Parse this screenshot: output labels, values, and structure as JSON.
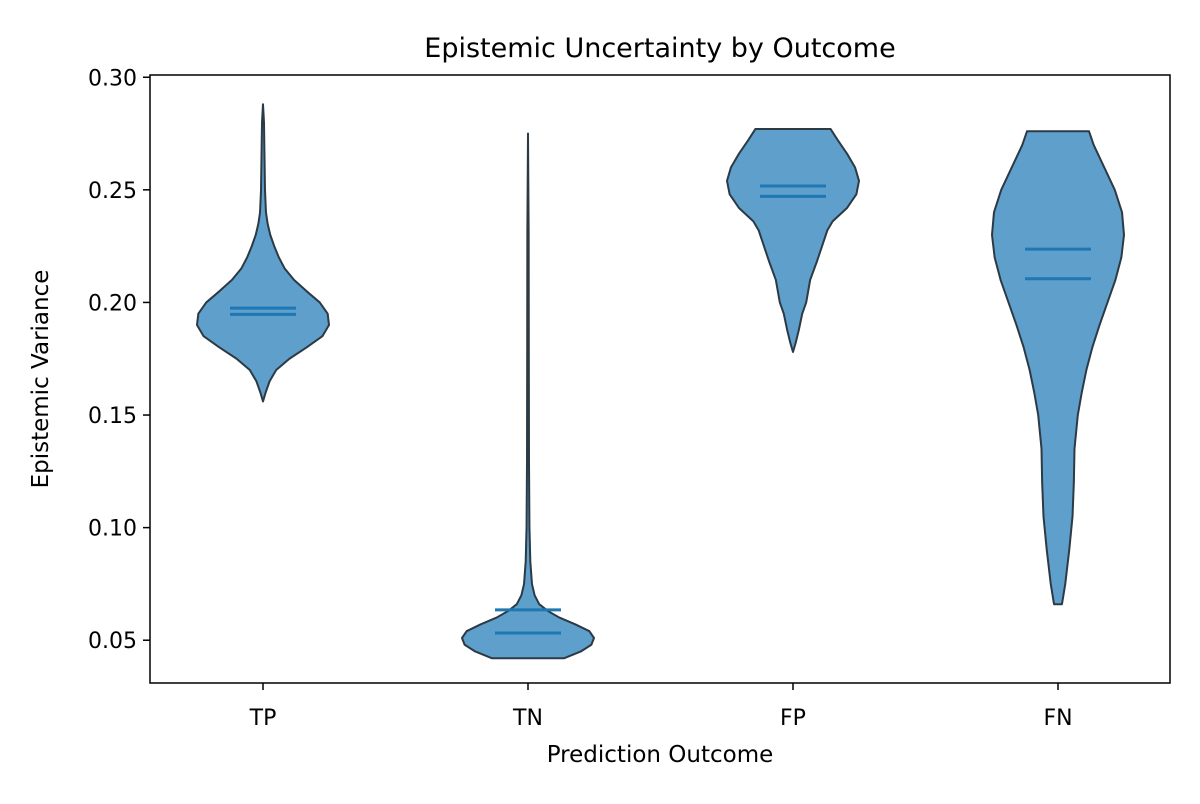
{
  "chart_data": {
    "type": "violin",
    "title": "Epistemic Uncertainty by Outcome",
    "xlabel": "Prediction Outcome",
    "ylabel": "Epistemic Variance",
    "ylim": [
      0.031,
      0.301
    ],
    "yticks": [
      0.05,
      0.1,
      0.15,
      0.2,
      0.25,
      0.3
    ],
    "ytick_labels": [
      "0.05",
      "0.10",
      "0.15",
      "0.20",
      "0.25",
      "0.30"
    ],
    "categories": [
      "TP",
      "TN",
      "FP",
      "FN"
    ],
    "grid": false,
    "colors": {
      "violin_fill": "#5f9fcc",
      "violin_edge": "#2b3a44",
      "stat_line": "#1f77b4",
      "axis": "#000000"
    },
    "violins": [
      {
        "category": "TP",
        "min": 0.156,
        "max": 0.288,
        "mean": 0.1975,
        "median": 0.1947,
        "density": [
          [
            0.156,
            0.0
          ],
          [
            0.16,
            0.04
          ],
          [
            0.165,
            0.1
          ],
          [
            0.17,
            0.2
          ],
          [
            0.175,
            0.4
          ],
          [
            0.18,
            0.66
          ],
          [
            0.185,
            0.9
          ],
          [
            0.19,
            1.0
          ],
          [
            0.195,
            0.98
          ],
          [
            0.2,
            0.86
          ],
          [
            0.205,
            0.66
          ],
          [
            0.21,
            0.47
          ],
          [
            0.215,
            0.33
          ],
          [
            0.22,
            0.24
          ],
          [
            0.225,
            0.17
          ],
          [
            0.23,
            0.11
          ],
          [
            0.235,
            0.07
          ],
          [
            0.24,
            0.045
          ],
          [
            0.25,
            0.03
          ],
          [
            0.26,
            0.025
          ],
          [
            0.27,
            0.02
          ],
          [
            0.28,
            0.015
          ],
          [
            0.288,
            0.0
          ]
        ]
      },
      {
        "category": "TN",
        "min": 0.042,
        "max": 0.275,
        "mean": 0.0635,
        "median": 0.0532,
        "density": [
          [
            0.042,
            0.55
          ],
          [
            0.045,
            0.8
          ],
          [
            0.048,
            0.96
          ],
          [
            0.051,
            1.0
          ],
          [
            0.054,
            0.93
          ],
          [
            0.057,
            0.72
          ],
          [
            0.06,
            0.48
          ],
          [
            0.063,
            0.3
          ],
          [
            0.066,
            0.17
          ],
          [
            0.07,
            0.1
          ],
          [
            0.075,
            0.06
          ],
          [
            0.085,
            0.035
          ],
          [
            0.1,
            0.022
          ],
          [
            0.13,
            0.015
          ],
          [
            0.18,
            0.012
          ],
          [
            0.23,
            0.01
          ],
          [
            0.275,
            0.0
          ]
        ]
      },
      {
        "category": "FP",
        "min": 0.178,
        "max": 0.277,
        "mean": 0.2517,
        "median": 0.2471,
        "density": [
          [
            0.178,
            0.0
          ],
          [
            0.182,
            0.04
          ],
          [
            0.188,
            0.09
          ],
          [
            0.195,
            0.14
          ],
          [
            0.2,
            0.2
          ],
          [
            0.21,
            0.26
          ],
          [
            0.218,
            0.36
          ],
          [
            0.225,
            0.44
          ],
          [
            0.232,
            0.52
          ],
          [
            0.236,
            0.6
          ],
          [
            0.242,
            0.82
          ],
          [
            0.248,
            0.96
          ],
          [
            0.254,
            1.0
          ],
          [
            0.26,
            0.94
          ],
          [
            0.266,
            0.82
          ],
          [
            0.272,
            0.68
          ],
          [
            0.277,
            0.57
          ]
        ]
      },
      {
        "category": "FN",
        "min": 0.066,
        "max": 0.276,
        "mean": 0.2237,
        "median": 0.2105,
        "density": [
          [
            0.066,
            0.06
          ],
          [
            0.075,
            0.11
          ],
          [
            0.09,
            0.17
          ],
          [
            0.105,
            0.22
          ],
          [
            0.12,
            0.24
          ],
          [
            0.135,
            0.25
          ],
          [
            0.15,
            0.3
          ],
          [
            0.16,
            0.36
          ],
          [
            0.17,
            0.43
          ],
          [
            0.18,
            0.52
          ],
          [
            0.19,
            0.63
          ],
          [
            0.2,
            0.75
          ],
          [
            0.21,
            0.87
          ],
          [
            0.22,
            0.96
          ],
          [
            0.23,
            1.0
          ],
          [
            0.24,
            0.97
          ],
          [
            0.25,
            0.86
          ],
          [
            0.26,
            0.7
          ],
          [
            0.27,
            0.54
          ],
          [
            0.276,
            0.47
          ]
        ]
      }
    ]
  }
}
